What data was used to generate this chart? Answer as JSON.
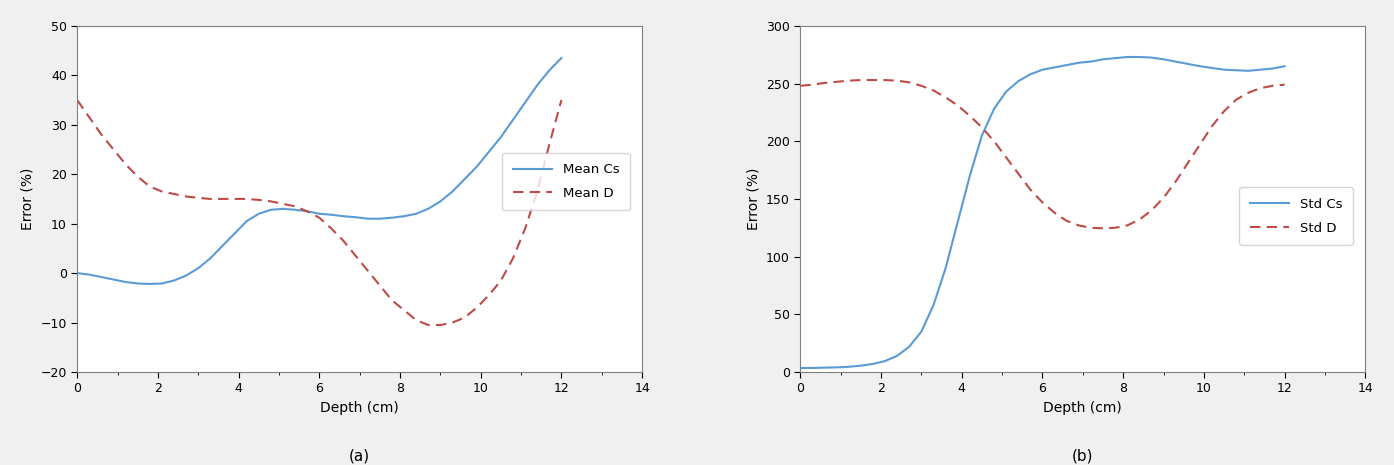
{
  "ax1": {
    "title": "(a)",
    "xlabel": "Depth (cm)",
    "ylabel": "Error (%)",
    "xlim": [
      0,
      14
    ],
    "ylim": [
      -20,
      50
    ],
    "xticks": [
      0,
      2,
      4,
      6,
      8,
      10,
      12,
      14
    ],
    "yticks": [
      -20,
      -10,
      0,
      10,
      20,
      30,
      40,
      50
    ],
    "legend": [
      "Mean Cs",
      "Mean D"
    ],
    "line_color_cs": "#5b9bd5",
    "line_color_d": "#be4b48",
    "mean_cs_x": [
      0,
      0.3,
      0.6,
      0.9,
      1.2,
      1.5,
      1.8,
      2.1,
      2.4,
      2.7,
      3.0,
      3.3,
      3.6,
      3.9,
      4.2,
      4.5,
      4.8,
      5.1,
      5.4,
      5.7,
      6.0,
      6.3,
      6.6,
      6.9,
      7.2,
      7.5,
      7.8,
      8.1,
      8.4,
      8.7,
      9.0,
      9.3,
      9.6,
      9.9,
      10.2,
      10.5,
      10.8,
      11.1,
      11.4,
      11.7,
      12.0
    ],
    "mean_cs_y": [
      0.0,
      -0.3,
      -0.8,
      -1.3,
      -1.8,
      -2.1,
      -2.2,
      -2.1,
      -1.5,
      -0.5,
      1.0,
      3.0,
      5.5,
      8.0,
      10.5,
      12.0,
      12.8,
      13.0,
      12.8,
      12.5,
      12.0,
      11.8,
      11.5,
      11.3,
      11.0,
      11.0,
      11.2,
      11.5,
      12.0,
      13.0,
      14.5,
      16.5,
      19.0,
      21.5,
      24.5,
      27.5,
      31.0,
      34.5,
      38.0,
      41.0,
      43.5
    ],
    "mean_d_x": [
      0,
      0.3,
      0.6,
      0.9,
      1.2,
      1.5,
      1.8,
      2.1,
      2.4,
      2.7,
      3.0,
      3.3,
      3.6,
      3.9,
      4.2,
      4.5,
      4.8,
      5.1,
      5.4,
      5.7,
      6.0,
      6.3,
      6.6,
      6.9,
      7.2,
      7.5,
      7.8,
      8.1,
      8.4,
      8.7,
      9.0,
      9.3,
      9.6,
      9.9,
      10.2,
      10.5,
      10.8,
      11.1,
      11.4,
      11.7,
      12.0
    ],
    "mean_d_y": [
      35.0,
      31.5,
      28.0,
      25.0,
      22.0,
      19.5,
      17.5,
      16.5,
      16.0,
      15.5,
      15.2,
      15.0,
      15.0,
      15.0,
      15.0,
      14.8,
      14.5,
      14.0,
      13.5,
      12.5,
      11.2,
      9.0,
      6.5,
      3.5,
      0.5,
      -2.5,
      -5.5,
      -7.5,
      -9.5,
      -10.5,
      -10.5,
      -10.0,
      -9.0,
      -7.0,
      -4.5,
      -1.5,
      3.0,
      9.0,
      16.5,
      26.0,
      35.0
    ]
  },
  "ax2": {
    "title": "(b)",
    "xlabel": "Depth (cm)",
    "ylabel": "Error (%)",
    "xlim": [
      0,
      14
    ],
    "ylim": [
      0,
      300
    ],
    "xticks": [
      0,
      2,
      4,
      6,
      8,
      10,
      12,
      14
    ],
    "yticks": [
      0,
      50,
      100,
      150,
      200,
      250,
      300
    ],
    "legend": [
      "Std Cs",
      "Std D"
    ],
    "line_color_cs": "#5b9bd5",
    "line_color_d": "#be4b48",
    "std_cs_x": [
      0,
      0.3,
      0.6,
      0.9,
      1.2,
      1.5,
      1.8,
      2.1,
      2.4,
      2.7,
      3.0,
      3.3,
      3.6,
      3.9,
      4.2,
      4.5,
      4.8,
      5.1,
      5.4,
      5.7,
      6.0,
      6.3,
      6.6,
      6.9,
      7.2,
      7.5,
      7.8,
      8.1,
      8.4,
      8.7,
      9.0,
      9.3,
      9.6,
      9.9,
      10.2,
      10.5,
      10.8,
      11.1,
      11.4,
      11.7,
      12.0
    ],
    "std_cs_y": [
      3.5,
      3.5,
      3.8,
      4.0,
      4.5,
      5.5,
      7.0,
      9.5,
      14.0,
      22.0,
      35.0,
      58.0,
      90.0,
      130.0,
      170.0,
      205.0,
      228.0,
      243.0,
      252.0,
      258.0,
      262.0,
      264.0,
      266.0,
      268.0,
      269.0,
      271.0,
      272.0,
      273.0,
      273.0,
      272.5,
      271.0,
      269.0,
      267.0,
      265.0,
      263.5,
      262.0,
      261.5,
      261.0,
      262.0,
      263.0,
      265.0
    ],
    "std_d_x": [
      0,
      0.3,
      0.6,
      0.9,
      1.2,
      1.5,
      1.8,
      2.1,
      2.4,
      2.7,
      3.0,
      3.3,
      3.6,
      3.9,
      4.2,
      4.5,
      4.8,
      5.1,
      5.4,
      5.7,
      6.0,
      6.3,
      6.6,
      6.9,
      7.2,
      7.5,
      7.8,
      8.1,
      8.4,
      8.7,
      9.0,
      9.3,
      9.6,
      9.9,
      10.2,
      10.5,
      10.8,
      11.1,
      11.4,
      11.7,
      12.0
    ],
    "std_d_y": [
      248.0,
      249.0,
      250.5,
      251.5,
      252.5,
      253.0,
      253.0,
      253.0,
      252.5,
      251.0,
      248.0,
      244.0,
      238.0,
      231.0,
      222.0,
      212.0,
      200.0,
      186.0,
      172.0,
      158.0,
      147.0,
      138.0,
      131.0,
      127.0,
      125.0,
      124.5,
      125.0,
      127.0,
      132.0,
      140.0,
      151.0,
      165.0,
      181.0,
      197.0,
      213.0,
      226.0,
      236.0,
      242.0,
      246.0,
      248.0,
      249.0
    ]
  },
  "fig_bg": "#f0f0f0",
  "ax_bg": "#ffffff"
}
